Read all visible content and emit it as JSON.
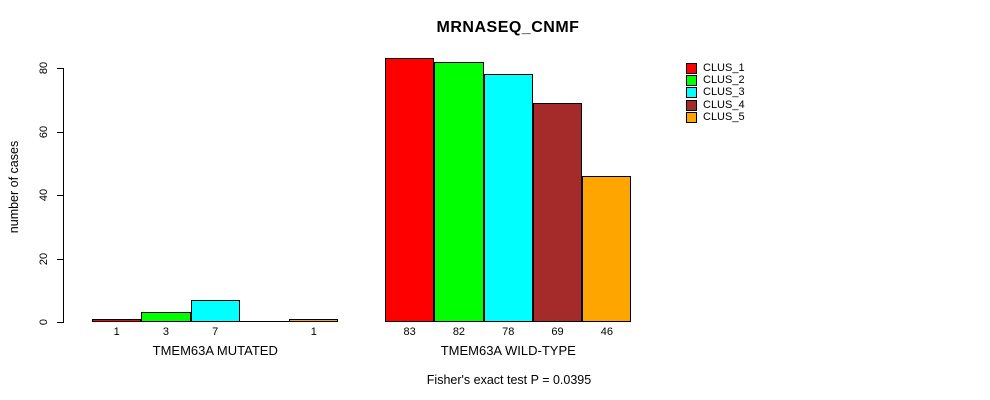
{
  "chart_data": {
    "type": "bar",
    "title": "MRNASEQ_CNMF",
    "ylabel": "number of cases",
    "ylim": [
      0,
      80
    ],
    "yticks": [
      0,
      20,
      40,
      60,
      80
    ],
    "grid": false,
    "legend_position": "right-top",
    "legend": [
      {
        "name": "CLUS_1",
        "color": "#FF0000"
      },
      {
        "name": "CLUS_2",
        "color": "#00FF00"
      },
      {
        "name": "CLUS_3",
        "color": "#00FFFF"
      },
      {
        "name": "CLUS_4",
        "color": "#A52A2A"
      },
      {
        "name": "CLUS_5",
        "color": "#FFA500"
      }
    ],
    "groups": [
      {
        "label": "TMEM63A MUTATED",
        "values": [
          1,
          3,
          7,
          0,
          1
        ],
        "bar_labels": [
          "1",
          "3",
          "7",
          "",
          "1"
        ]
      },
      {
        "label": "TMEM63A WILD-TYPE",
        "values": [
          83,
          82,
          78,
          69,
          46
        ],
        "bar_labels": [
          "83",
          "82",
          "78",
          "69",
          "46"
        ]
      }
    ],
    "annotation": "Fisher's exact test P = 0.0395"
  }
}
